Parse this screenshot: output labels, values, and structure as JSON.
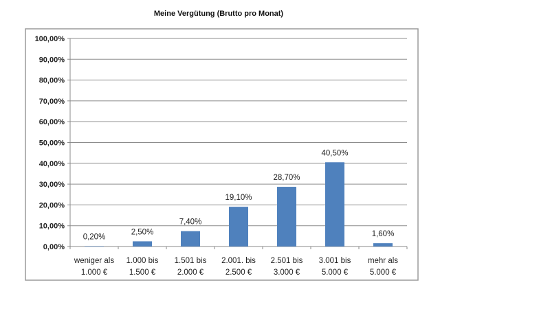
{
  "chart_data": {
    "type": "bar",
    "title": "Meine Vergütung (Brutto pro Monat)",
    "xlabel": "",
    "ylabel": "",
    "ylim": [
      0,
      100
    ],
    "yticks": [
      "0,00%",
      "10,00%",
      "20,00%",
      "30,00%",
      "40,00%",
      "50,00%",
      "60,00%",
      "70,00%",
      "80,00%",
      "90,00%",
      "100,00%"
    ],
    "grid": true,
    "bar_color": "#4F81BD",
    "categories": [
      [
        "weniger als",
        "1.000 €"
      ],
      [
        "1.000 bis",
        "1.500 €"
      ],
      [
        "1.501 bis",
        "2.000 €"
      ],
      [
        "2.001. bis",
        "2.500 €"
      ],
      [
        "2.501 bis",
        "3.000 €"
      ],
      [
        "3.001 bis",
        "5.000 €"
      ],
      [
        "mehr als",
        "5.000 €"
      ]
    ],
    "values": [
      0.2,
      2.5,
      7.4,
      19.1,
      28.7,
      40.5,
      1.6
    ],
    "data_labels": [
      "0,20%",
      "2,50%",
      "7,40%",
      "19,10%",
      "28,70%",
      "40,50%",
      "1,60%"
    ]
  }
}
